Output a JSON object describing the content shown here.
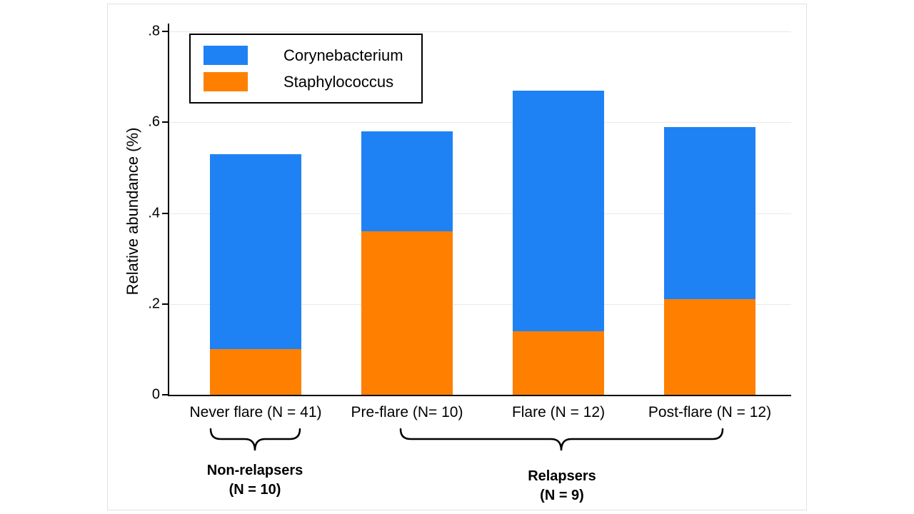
{
  "figure": {
    "background": "#ffffff"
  },
  "chart_data": {
    "type": "bar",
    "subtype": "stacked",
    "title": "",
    "ylabel": "Relative abundance (%)",
    "xlabel": "",
    "ylim": [
      0,
      0.8
    ],
    "grid": true,
    "gridline_color": "#e8e8e8",
    "yticks": [
      {
        "value": 0,
        "label": "0"
      },
      {
        "value": 0.2,
        "label": ".2"
      },
      {
        "value": 0.4,
        "label": ".4"
      },
      {
        "value": 0.6,
        "label": ".6"
      },
      {
        "value": 0.8,
        "label": ".8"
      }
    ],
    "categories": [
      "Never flare (N = 41)",
      "Pre-flare (N= 10)",
      "Flare (N = 12)",
      "Post-flare (N = 12)"
    ],
    "series": [
      {
        "name": "Staphylococcus",
        "color": "#ff8000",
        "stack_position": "bottom",
        "values": [
          0.1,
          0.36,
          0.14,
          0.21
        ]
      },
      {
        "name": "Corynebacterium",
        "color": "#1e82f5",
        "stack_position": "top",
        "values": [
          0.43,
          0.22,
          0.53,
          0.38
        ]
      }
    ],
    "totals": [
      0.53,
      0.58,
      0.67,
      0.59
    ],
    "legend": {
      "position": "top-left",
      "entries": [
        {
          "label": "Corynebacterium",
          "color": "#1e82f5"
        },
        {
          "label": "Staphylococcus",
          "color": "#ff8000"
        }
      ]
    }
  },
  "annotations": {
    "groups": [
      {
        "line1": "Non-relapsers",
        "line2": "(N = 10)",
        "categories": [
          "Never flare (N = 41)"
        ]
      },
      {
        "line1": "Relapsers",
        "line2": "(N = 9)",
        "categories": [
          "Pre-flare (N= 10)",
          "Flare (N = 12)",
          "Post-flare (N = 12)"
        ]
      }
    ]
  }
}
